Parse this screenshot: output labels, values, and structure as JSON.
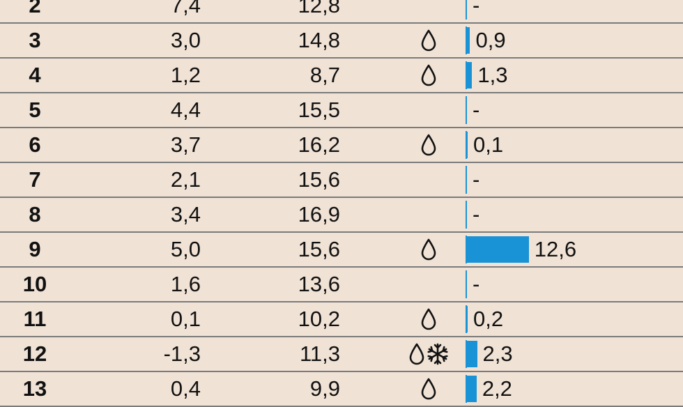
{
  "bar_color": "#1a93d6",
  "rows": [
    {
      "day": "2",
      "min": "7,4",
      "max": "12,8",
      "icons": [],
      "precip_value": 0,
      "precip_label": "-"
    },
    {
      "day": "3",
      "min": "3,0",
      "max": "14,8",
      "icons": [
        "raindrop-icon"
      ],
      "precip_value": 0.9,
      "precip_label": "0,9"
    },
    {
      "day": "4",
      "min": "1,2",
      "max": "8,7",
      "icons": [
        "raindrop-icon"
      ],
      "precip_value": 1.3,
      "precip_label": "1,3"
    },
    {
      "day": "5",
      "min": "4,4",
      "max": "15,5",
      "icons": [],
      "precip_value": 0,
      "precip_label": "-"
    },
    {
      "day": "6",
      "min": "3,7",
      "max": "16,2",
      "icons": [
        "raindrop-icon"
      ],
      "precip_value": 0.1,
      "precip_label": "0,1"
    },
    {
      "day": "7",
      "min": "2,1",
      "max": "15,6",
      "icons": [],
      "precip_value": 0,
      "precip_label": "-"
    },
    {
      "day": "8",
      "min": "3,4",
      "max": "16,9",
      "icons": [],
      "precip_value": 0,
      "precip_label": "-"
    },
    {
      "day": "9",
      "min": "5,0",
      "max": "15,6",
      "icons": [
        "raindrop-icon"
      ],
      "precip_value": 12.6,
      "precip_label": "12,6"
    },
    {
      "day": "10",
      "min": "1,6",
      "max": "13,6",
      "icons": [],
      "precip_value": 0,
      "precip_label": "-"
    },
    {
      "day": "11",
      "min": "0,1",
      "max": "10,2",
      "icons": [
        "raindrop-icon"
      ],
      "precip_value": 0.2,
      "precip_label": "0,2"
    },
    {
      "day": "12",
      "min": "-1,3",
      "max": "11,3",
      "icons": [
        "raindrop-icon",
        "snowflake-icon"
      ],
      "precip_value": 2.3,
      "precip_label": "2,3"
    },
    {
      "day": "13",
      "min": "0,4",
      "max": "9,9",
      "icons": [
        "raindrop-icon"
      ],
      "precip_value": 2.2,
      "precip_label": "2,2"
    }
  ]
}
